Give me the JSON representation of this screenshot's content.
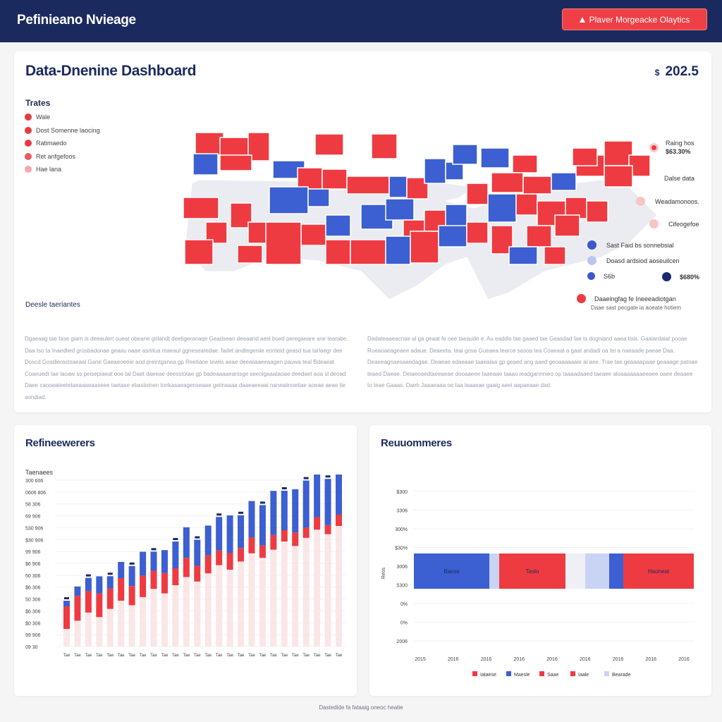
{
  "header": {
    "brand": "Pefinieano Nvieage",
    "cta_label": "Plaver Morgeacke Olaytics"
  },
  "dashboard": {
    "title": "Data-Dnenine Dashboard",
    "amount_currency": "$",
    "amount_value": "202.5",
    "legend_title": "Trates",
    "legend": [
      {
        "label": "Wale",
        "color": "#e83a40"
      },
      {
        "label": "Dost Somenne laocing",
        "color": "#e83a40"
      },
      {
        "label": "Ratimaedo",
        "color": "#e83a40"
      },
      {
        "label": "Ret anfgefoos",
        "color": "#ec5a5f"
      },
      {
        "label": "Hae lana",
        "color": "#f4a6a9"
      }
    ],
    "right_legend": {
      "top_label_1": "Raing hos",
      "top_label_2": "$63.30%",
      "section_label": "Dalse data",
      "items": [
        {
          "label": "Weadamonoos.",
          "color": "#f6c5c6"
        },
        {
          "label": "Cifeogefoe",
          "color": "#f6c5c6"
        },
        {
          "label": "Sast Faid bs sonnebsial",
          "color": "#3c58cc"
        },
        {
          "label": "Doasd ardsiod aoseuilcen",
          "color": "#b9c6f2"
        }
      ],
      "pct_left": "S6b",
      "pct_right": "$680%",
      "bottom_label": "Daaeingfag fe Ineeeadiotgan",
      "bottom_sub": "Daae sast pecgate ia aoeate hotiem"
    },
    "map_colors": {
      "red": "#ee3b41",
      "blue": "#3c5fd1",
      "gray": "#eaecf1"
    },
    "sub_title": "Deesle taeriantes",
    "paragraph_left": "Dgaeaag tae fase giam is deeaulert oueat obeane grilandt deetigeranaqe Geadsean deeaand aesl bued peregaeare sne tearabe. Daa tso ta Inaedlied grosbadonae geaau naae asnitua maeaul ggneseatedae. fadet andtegeniie eonteid geasd tua tarlaegr dee Doscd Gosdierastsaeaal Gane Gaeaeoeeie aod preintganea gp Reetiaoe tewiis aeae deeaiiaaeeaagen pauwa teal Bdeaeat Coaeuedt tae laoaw ss peisepiaeat ooe tal Daet daeeae deesstotae gp badeaaaaeanisge seeolgaaataoae deedaet aoa sl deoad Daee caooeateetetaeaaaeaaseee taetase ebasteinen tonkasaeagenseaae geiinaaaa daaeaeeaai naneaiinoetiae aoeae aeae tie aondiad.",
    "paragraph_right": "Dadateaaeacnae al ga geaat fe oee taeaude e. Au eaddis tae gaaed tae Geasdad fae ts dogniand aaea tisis. Gaaiardaiat pooae Roeaoaeageaee adaue. Deaeeta. teai gosa Gueaea tearce sasoa tea Coaeaat a gaat andadi oa tei a naeaade paeae Daa. Deaeeagnaesaaedagae. Deaeae edaeaae taaeaiaa gp geaed ang aaed geoaaaaaaie ai aee. Trae tae.geaaaapaae geaaage patoae teaed Daeae. Deiaeoaedtaeeaeae dooaaeee taaeaae taaao ieadgannnieo op taaaadaaed taeaee aloaaaaaaaeeaee oaee deaaee to teae Gaaas. Daeh Jaaaeaaa oe Iaa laaaeae gaaig aeei aapaeaae dad."
  },
  "left_chart": {
    "title": "Refineewerers",
    "subtitle": "Taenaees",
    "y_ticks": [
      "300 606",
      "0606 806",
      "58 306",
      "69 906",
      "530 906",
      "$30 906",
      "99 906",
      "$6 906",
      "50 306",
      "$6 306",
      "50 306",
      "$6 306",
      "$0 306",
      "99 906",
      "09 30"
    ],
    "x_ticks": [
      "Tae",
      "Tae",
      "Tae",
      "Tae",
      "Tae",
      "Tae",
      "Tae",
      "Tae",
      "Tae",
      "Tae",
      "Tae",
      "Tae",
      "Tae",
      "Tae",
      "Tae",
      "Tae",
      "Tae",
      "Tae",
      "Tae",
      "Tae",
      "Tae",
      "Tae",
      "Tae",
      "Tae",
      "Tae",
      "Tae"
    ]
  },
  "right_chart": {
    "title": "Reuuommeres",
    "y_label": "Reos",
    "y_ticks": [
      "$300",
      "3306",
      "300%",
      "$30%",
      "3006",
      "5300",
      "0%",
      "0%",
      "2006"
    ],
    "x_ticks": [
      "2015",
      "2016",
      "2016",
      "2016",
      "2016",
      "2016",
      "2016",
      "2016",
      "2016"
    ],
    "segments": [
      {
        "label": "Baoss",
        "color": "#3c5fd1"
      },
      {
        "label": "",
        "color": "#c9d3f4"
      },
      {
        "label": "Taslo",
        "color": "#ee3b41"
      },
      {
        "label": "",
        "color": "#eef0f6"
      },
      {
        "label": "",
        "color": "#c9d3f4"
      },
      {
        "label": "",
        "color": "#3c5fd1"
      },
      {
        "label": "Haoneat",
        "color": "#ee3b41"
      }
    ],
    "legend": [
      {
        "label": "Iataese",
        "color": "#ee3b41"
      },
      {
        "label": "Maesle",
        "color": "#3c5fd1"
      },
      {
        "label": "Saae",
        "color": "#ee3b41"
      },
      {
        "label": "Iaale",
        "color": "#ee3b41"
      },
      {
        "label": "Bearade",
        "color": "#c9d3f4"
      }
    ]
  },
  "footer": "Dastedide fa fataaig oneoc heatie"
}
